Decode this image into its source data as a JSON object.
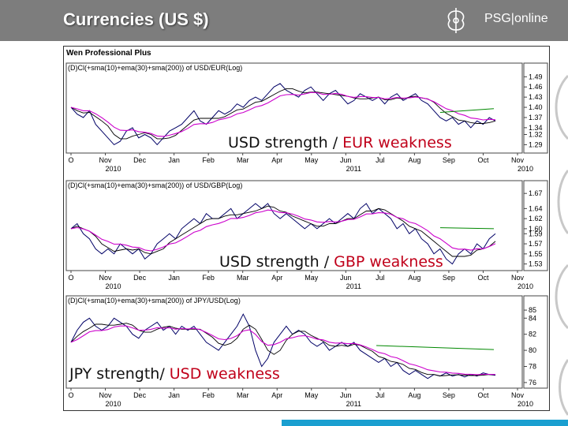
{
  "slide": {
    "title": "Currencies (US $)",
    "logo_text": "PSG|online",
    "frame_title": "Wen Professional Plus"
  },
  "colors": {
    "header_bg": "#7d7d7d",
    "price": "#000066",
    "sma": "#000000",
    "ema": "#cc00cc",
    "long_ma": "#008800",
    "highlight": "#c0001a",
    "footer_bar": "#1a9fd0"
  },
  "chart_data": [
    {
      "type": "line",
      "name": "usd-eur",
      "title": "(D)Cl(+sma(10)+ema(30)+sma(200)) of USD/EUR(Log)",
      "x_labels": [
        "O",
        "Nov",
        "Dec",
        "Jan",
        "Feb",
        "Mar",
        "Apr",
        "May",
        "Jun",
        "Jul",
        "Aug",
        "Sep",
        "Oct",
        "Nov"
      ],
      "year_labels": [
        {
          "month": "Nov",
          "year": "2010"
        },
        {
          "month": "Jun",
          "year": "2011"
        }
      ],
      "ylim": [
        1.27,
        1.5
      ],
      "yticks": [
        1.49,
        1.46,
        1.43,
        1.4,
        1.37,
        1.34,
        1.32,
        1.29
      ],
      "annotation_parts": [
        "USD strength / ",
        "EUR weakness"
      ],
      "annotation_highlight": 1,
      "close": [
        1.4,
        1.38,
        1.37,
        1.39,
        1.35,
        1.33,
        1.31,
        1.29,
        1.3,
        1.33,
        1.34,
        1.31,
        1.32,
        1.31,
        1.29,
        1.31,
        1.33,
        1.34,
        1.35,
        1.37,
        1.39,
        1.36,
        1.35,
        1.37,
        1.39,
        1.38,
        1.39,
        1.41,
        1.4,
        1.42,
        1.43,
        1.42,
        1.44,
        1.46,
        1.47,
        1.45,
        1.44,
        1.43,
        1.45,
        1.46,
        1.44,
        1.42,
        1.44,
        1.45,
        1.43,
        1.41,
        1.42,
        1.44,
        1.43,
        1.42,
        1.43,
        1.41,
        1.43,
        1.44,
        1.42,
        1.43,
        1.44,
        1.42,
        1.41,
        1.39,
        1.37,
        1.36,
        1.37,
        1.35,
        1.36,
        1.34,
        1.36,
        1.35,
        1.37,
        1.36
      ],
      "long_ma": {
        "start": 1.385,
        "end": 1.396,
        "from_frac": 0.82
      }
    },
    {
      "type": "line",
      "name": "usd-gbp",
      "title": "(D)Cl(+sma(10)+ema(30)+sma(200)) of USD/GBP(Log)",
      "x_labels": [
        "O",
        "Nov",
        "Dec",
        "Jan",
        "Feb",
        "Mar",
        "Apr",
        "May",
        "Jun",
        "Jul",
        "Aug",
        "Sep",
        "Oct",
        "Nov"
      ],
      "year_labels": [
        {
          "month": "Nov",
          "year": "2010"
        },
        {
          "month": "Jun",
          "year": "2011"
        }
      ],
      "ylim": [
        1.52,
        1.675
      ],
      "yticks": [
        1.67,
        1.64,
        1.62,
        1.6,
        1.59,
        1.57,
        1.55,
        1.53
      ],
      "annotation_parts": [
        "USD strength / ",
        "GBP weakness"
      ],
      "annotation_highlight": 1,
      "close": [
        1.6,
        1.61,
        1.59,
        1.58,
        1.56,
        1.55,
        1.56,
        1.55,
        1.57,
        1.56,
        1.55,
        1.56,
        1.54,
        1.55,
        1.57,
        1.58,
        1.59,
        1.58,
        1.6,
        1.61,
        1.62,
        1.61,
        1.63,
        1.62,
        1.62,
        1.63,
        1.64,
        1.62,
        1.63,
        1.64,
        1.65,
        1.64,
        1.65,
        1.63,
        1.62,
        1.63,
        1.62,
        1.61,
        1.6,
        1.61,
        1.6,
        1.61,
        1.62,
        1.61,
        1.62,
        1.63,
        1.62,
        1.64,
        1.65,
        1.63,
        1.64,
        1.63,
        1.62,
        1.6,
        1.61,
        1.59,
        1.6,
        1.58,
        1.57,
        1.55,
        1.56,
        1.54,
        1.53,
        1.55,
        1.56,
        1.55,
        1.57,
        1.56,
        1.58,
        1.59
      ],
      "long_ma": {
        "start": 1.602,
        "end": 1.6,
        "from_frac": 0.82
      }
    },
    {
      "type": "line",
      "name": "jpy-usd",
      "title": "(D)Cl(+sma(10)+ema(30)+sma(200)) of JPY/USD(Log)",
      "x_labels": [
        "O",
        "Nov",
        "Dec",
        "Jan",
        "Feb",
        "Mar",
        "Apr",
        "May",
        "Jun",
        "Jul",
        "Aug",
        "Sep",
        "Oct",
        "Nov"
      ],
      "year_labels": [
        {
          "month": "Nov",
          "year": "2010"
        },
        {
          "month": "Jun",
          "year": "2011"
        }
      ],
      "ylim": [
        75.5,
        85.5
      ],
      "yticks": [
        85,
        84,
        82,
        80,
        78,
        76
      ],
      "annotation_parts": [
        "JPY strength/ ",
        "USD weakness"
      ],
      "annotation_highlight": 1,
      "close": [
        81.0,
        82.5,
        83.5,
        84.0,
        83.0,
        82.5,
        83.0,
        84.0,
        83.5,
        83.0,
        82.0,
        81.5,
        82.5,
        83.0,
        83.5,
        82.5,
        83.0,
        82.0,
        83.0,
        82.5,
        83.0,
        82.0,
        81.0,
        80.5,
        80.0,
        81.0,
        82.0,
        83.0,
        84.5,
        83.0,
        80.0,
        78.0,
        79.0,
        81.0,
        82.0,
        83.0,
        82.0,
        82.5,
        82.0,
        81.0,
        80.5,
        81.0,
        80.0,
        80.5,
        81.0,
        80.5,
        81.0,
        80.0,
        79.5,
        79.0,
        78.5,
        79.0,
        78.0,
        78.5,
        77.5,
        77.0,
        77.5,
        77.0,
        76.5,
        77.0,
        76.8,
        77.2,
        76.8,
        77.0,
        76.7,
        77.0,
        76.8,
        77.2,
        77.0,
        76.9
      ],
      "long_ma": {
        "start": 80.6,
        "end": 80.1,
        "from_frac": 0.68
      }
    }
  ]
}
